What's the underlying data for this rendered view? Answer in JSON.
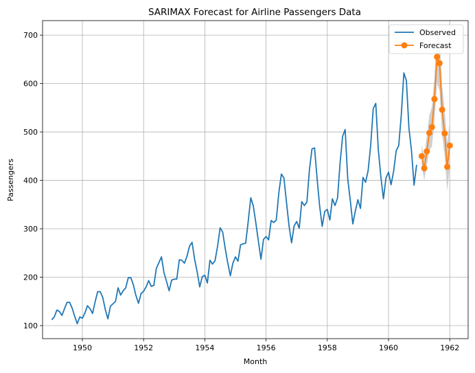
{
  "chart_data": {
    "type": "line",
    "title": "SARIMAX Forecast for Airline Passengers Data",
    "xlabel": "Month",
    "ylabel": "Passengers",
    "xlim": [
      1948.7,
      1962.6
    ],
    "ylim": [
      73,
      730
    ],
    "xticks": [
      1950,
      1952,
      1954,
      1956,
      1958,
      1960,
      1962
    ],
    "yticks": [
      100,
      200,
      300,
      400,
      500,
      600,
      700
    ],
    "grid": true,
    "legend_position": "top-right",
    "colors": {
      "observed": "#1f77b4",
      "forecast": "#ff7f0e",
      "band": "#c8c8c8"
    },
    "series": [
      {
        "name": "Observed",
        "start": 1949.0,
        "step": 0.0833333,
        "values": [
          112,
          118,
          132,
          129,
          121,
          135,
          148,
          148,
          136,
          119,
          104,
          118,
          115,
          126,
          141,
          135,
          125,
          149,
          170,
          170,
          158,
          133,
          114,
          140,
          145,
          150,
          178,
          163,
          172,
          178,
          199,
          199,
          184,
          162,
          146,
          166,
          171,
          180,
          193,
          181,
          183,
          218,
          230,
          242,
          209,
          191,
          172,
          194,
          196,
          196,
          236,
          235,
          229,
          243,
          264,
          272,
          237,
          211,
          180,
          201,
          204,
          188,
          235,
          227,
          234,
          264,
          302,
          293,
          259,
          229,
          203,
          229,
          242,
          233,
          267,
          269,
          270,
          315,
          364,
          347,
          312,
          274,
          237,
          278,
          284,
          277,
          317,
          313,
          318,
          374,
          413,
          405,
          355,
          306,
          271,
          306,
          315,
          301,
          356,
          348,
          355,
          422,
          465,
          467,
          404,
          347,
          305,
          336,
          340,
          318,
          362,
          348,
          363,
          435,
          491,
          505,
          404,
          359,
          310,
          337,
          360,
          342,
          406,
          396,
          420,
          472,
          548,
          559,
          463,
          407,
          362,
          405,
          417,
          391,
          419,
          461,
          472,
          535,
          622,
          606,
          508,
          461,
          390,
          432
        ]
      },
      {
        "name": "Forecast",
        "start": 1961.0833,
        "step": 0.0833333,
        "values": [
          450,
          425,
          460,
          498,
          510,
          568,
          655,
          642,
          546,
          497,
          428,
          472
        ],
        "lower": [
          430,
          400,
          430,
          462,
          470,
          520,
          600,
          585,
          495,
          450,
          378,
          425
        ],
        "upper": [
          472,
          450,
          492,
          536,
          552,
          616,
          710,
          700,
          598,
          545,
          478,
          520
        ]
      }
    ]
  }
}
